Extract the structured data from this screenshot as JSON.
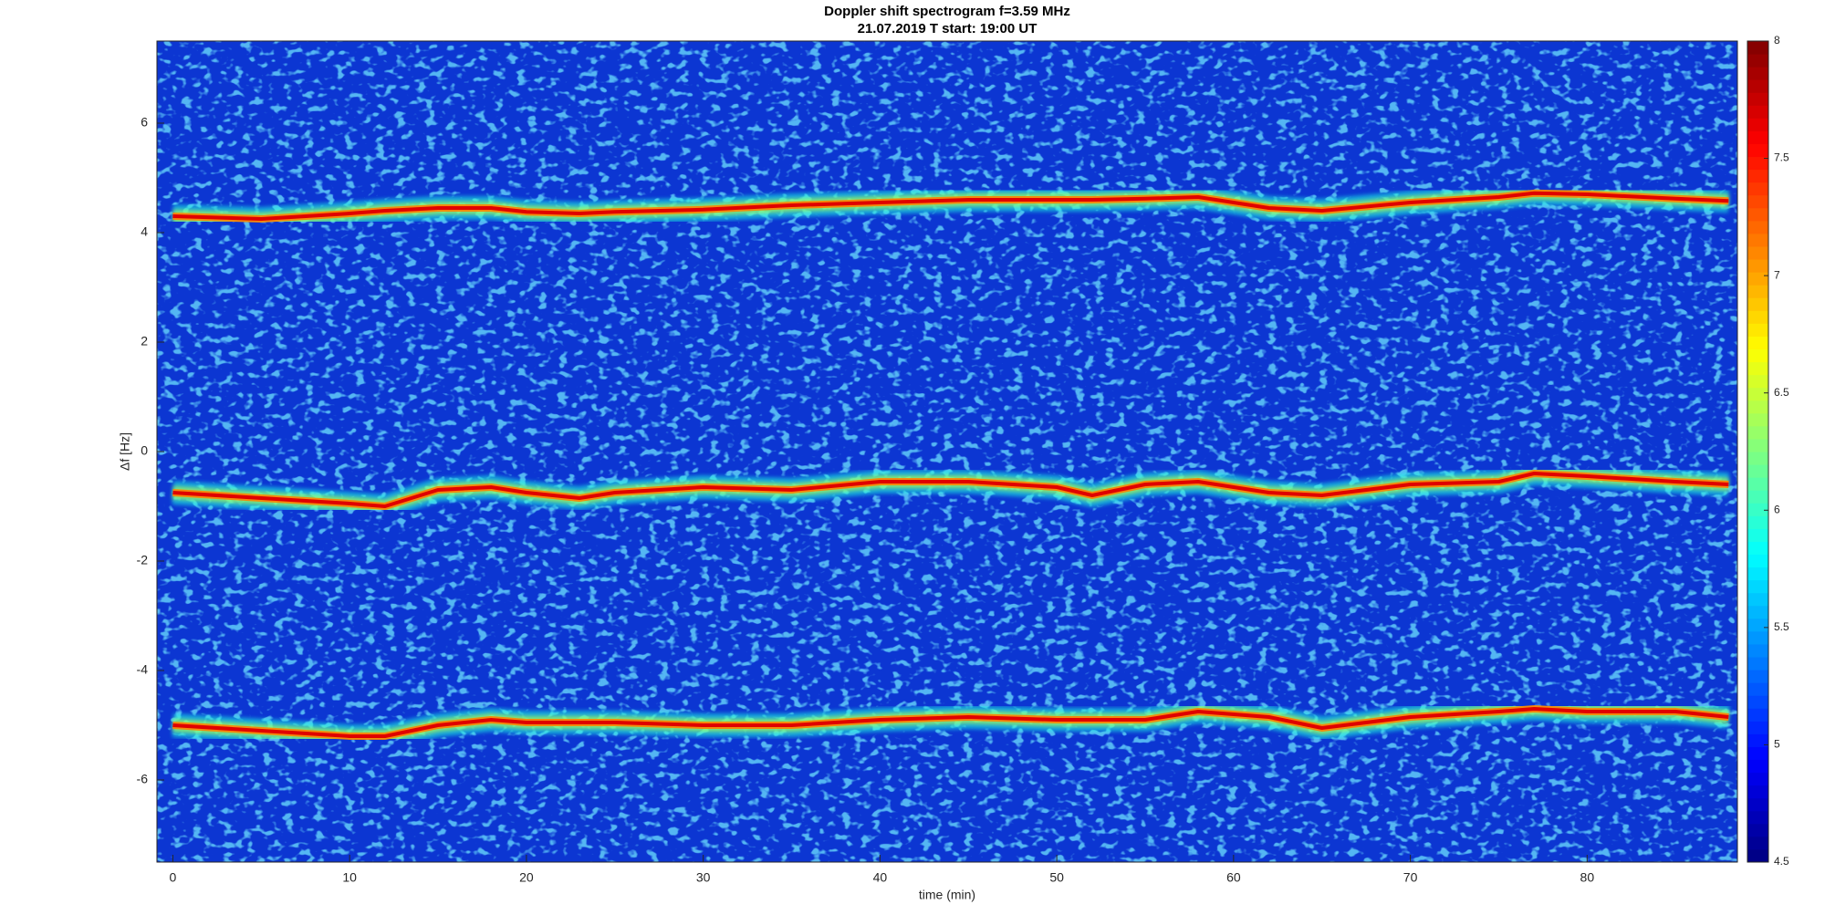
{
  "chart_data": {
    "type": "spectrogram",
    "title": "Doppler shift spectrogram f=3.59 MHz",
    "subtitle": "21.07.2019   T start: 19:00 UT",
    "x_label": "time (min)",
    "y_label": "Δf [Hz]",
    "x": [
      0,
      5,
      10,
      12,
      15,
      18,
      20,
      23,
      25,
      30,
      35,
      40,
      45,
      50,
      52,
      55,
      58,
      62,
      65,
      70,
      75,
      77,
      80,
      85,
      88
    ],
    "series": [
      {
        "color": "#e00000",
        "values": [
          4.3,
          4.25,
          4.35,
          4.4,
          4.45,
          4.45,
          4.38,
          4.35,
          4.38,
          4.42,
          4.5,
          4.55,
          4.6,
          4.6,
          4.6,
          4.62,
          4.65,
          4.45,
          4.4,
          4.55,
          4.65,
          4.72,
          4.7,
          4.62,
          4.58
        ]
      },
      {
        "color": "#e00000",
        "values": [
          -0.75,
          -0.85,
          -0.95,
          -1.0,
          -0.7,
          -0.65,
          -0.75,
          -0.85,
          -0.75,
          -0.65,
          -0.7,
          -0.55,
          -0.55,
          -0.65,
          -0.8,
          -0.6,
          -0.55,
          -0.75,
          -0.8,
          -0.6,
          -0.55,
          -0.4,
          -0.45,
          -0.55,
          -0.6
        ]
      },
      {
        "color": "#e00000",
        "values": [
          -5.0,
          -5.1,
          -5.2,
          -5.2,
          -5.0,
          -4.9,
          -4.95,
          -4.95,
          -4.95,
          -5.0,
          -5.0,
          -4.9,
          -4.85,
          -4.9,
          -4.9,
          -4.9,
          -4.75,
          -4.85,
          -5.05,
          -4.85,
          -4.75,
          -4.7,
          -4.75,
          -4.75,
          -4.85
        ]
      }
    ],
    "xlim": [
      -0.9,
      88.5
    ],
    "xticks": [
      0,
      10,
      20,
      30,
      40,
      50,
      60,
      70,
      80
    ],
    "ylim": [
      -7.5,
      7.5
    ],
    "yticks": [
      -6,
      -4,
      -2,
      0,
      2,
      4,
      6
    ],
    "colormap": "jet",
    "clim": [
      4.5,
      8
    ],
    "cticks": [
      4.5,
      5,
      5.5,
      6,
      6.5,
      7,
      7.5,
      8
    ]
  }
}
